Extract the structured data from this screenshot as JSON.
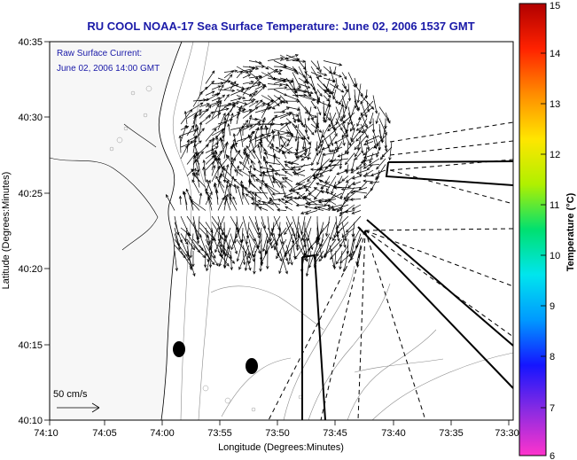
{
  "title": "RU COOL  NOAA-17  Sea Surface Temperature:  June 02, 2006 1537 GMT",
  "annotation": {
    "line1": "Raw Surface Current:",
    "line2": "June 02, 2006 14:00 GMT"
  },
  "scale_label": "50 cm/s",
  "x_axis": {
    "label": "Longitude (Degrees:Minutes)",
    "ticks": [
      "74:10",
      "74:05",
      "74:00",
      "73:55",
      "73:50",
      "73:45",
      "73:40",
      "73:35",
      "73:30"
    ]
  },
  "y_axis": {
    "label": "Latitude (Degrees:Minutes)",
    "ticks": [
      "40:10",
      "40:15",
      "40:20",
      "40:25",
      "40:30",
      "40:35"
    ]
  },
  "colorbar": {
    "label": "Temperature (°C)",
    "ticks": [
      "6",
      "7",
      "8",
      "9",
      "10",
      "11",
      "12",
      "13",
      "14",
      "15"
    ],
    "colors": [
      "#ff33cc",
      "#8a2be2",
      "#1515ff",
      "#0099ff",
      "#00e5ee",
      "#00e070",
      "#b0f000",
      "#ffe600",
      "#ff8c00",
      "#ff2200",
      "#b00000"
    ]
  }
}
